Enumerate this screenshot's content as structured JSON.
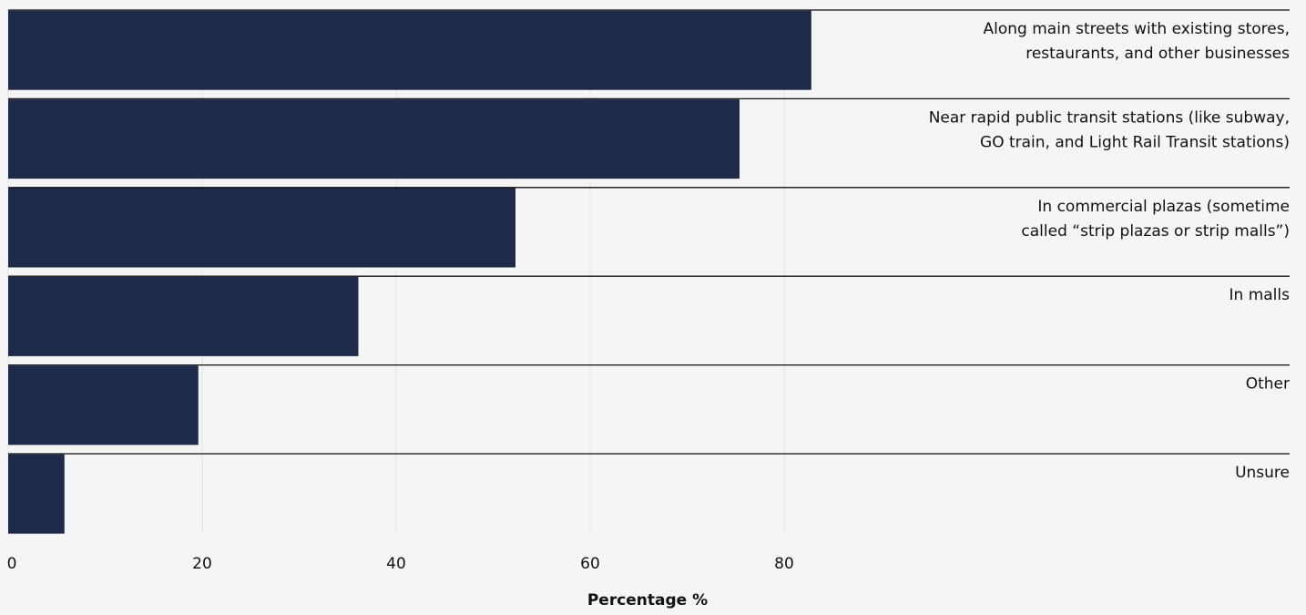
{
  "chart_data": {
    "type": "bar",
    "orientation": "horizontal",
    "categories": [
      [
        "Along main streets with existing stores,",
        "restaurants, and other businesses"
      ],
      [
        "Near rapid public transit stations  (like subway,",
        "GO train, and Light Rail Transit stations)"
      ],
      [
        "In commercial plazas (sometime",
        "called “strip plazas or strip malls”)"
      ],
      [
        "In malls"
      ],
      [
        "Other"
      ],
      [
        "Unsure"
      ]
    ],
    "values": [
      82.8,
      75.4,
      52.3,
      36.1,
      19.6,
      5.8
    ],
    "xlabel": "Percentage %",
    "xticks": [
      0,
      20,
      40,
      60,
      80
    ],
    "xlim": [
      0,
      133.3
    ],
    "grid": "vertical",
    "bar_color": "#1e2a4a",
    "background_color": "#f5f5f5",
    "separator_color": "#111111",
    "grid_color": "#e4e4e4"
  }
}
